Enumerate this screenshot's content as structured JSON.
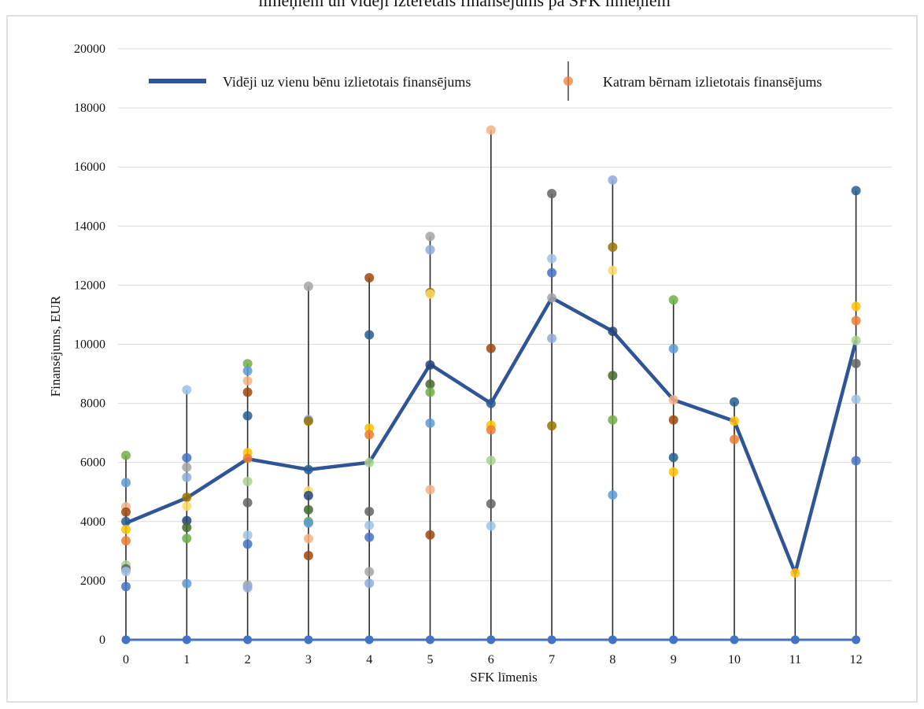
{
  "chart_data": {
    "type": "scatter",
    "title": "līmeņiem  un vidēji iztērētais finansējums pa SFK līmeņiem",
    "xlabel": "SFK līmenis",
    "ylabel": "Finansējums, EUR",
    "x": [
      0,
      1,
      2,
      3,
      4,
      5,
      6,
      7,
      8,
      9,
      10,
      11,
      12
    ],
    "ylim": [
      0,
      20000
    ],
    "yticks": [
      0,
      2000,
      4000,
      6000,
      8000,
      10000,
      12000,
      14000,
      16000,
      18000,
      20000
    ],
    "grid": "horizontal",
    "legend_position": "top",
    "series": [
      {
        "name": "Vidēji uz vienu bēnu izlietotais finansējums",
        "type": "line",
        "color": "#2f5597",
        "values": [
          3950,
          4800,
          6120,
          5760,
          6000,
          9320,
          8000,
          11570,
          10440,
          8120,
          7400,
          2260,
          10130
        ]
      },
      {
        "name": "Katram bērnam izlietotais finansējums",
        "type": "scatter-with-range",
        "color": "#ed7d31",
        "points": [
          [
            0,
            [
              6240,
              5320,
              4500,
              4320,
              4000,
              3730,
              3350,
              2530,
              2400,
              2310,
              1800
            ]
          ],
          [
            1,
            [
              8460,
              6160,
              5840,
              5500,
              4820,
              4520,
              4030,
              3800,
              3430,
              1900
            ]
          ],
          [
            2,
            [
              9340,
              9100,
              8760,
              8380,
              7580,
              6330,
              6140,
              5360,
              4640,
              3540,
              3240,
              1850,
              1760
            ]
          ],
          [
            3,
            [
              11960,
              7450,
              7400,
              5040,
              4880,
              4400,
              4000,
              3950,
              3420,
              2850,
              5760
            ]
          ],
          [
            4,
            [
              12250,
              10320,
              7160,
              6940,
              6000,
              4340,
              3870,
              3470,
              2300,
              1910
            ]
          ],
          [
            5,
            [
              13650,
              13200,
              11750,
              11700,
              9300,
              8650,
              8380,
              7330,
              5080,
              3550
            ]
          ],
          [
            6,
            [
              17250,
              9860,
              8000,
              7260,
              7100,
              6070,
              4600,
              3850
            ]
          ],
          [
            7,
            [
              15100,
              12900,
              12420,
              11570,
              10200,
              7240
            ]
          ],
          [
            8,
            [
              15560,
              13290,
              12500,
              10440,
              8940,
              7440,
              4900
            ]
          ],
          [
            9,
            [
              11500,
              9850,
              8120,
              7440,
              6170,
              5680
            ]
          ],
          [
            10,
            [
              8050,
              7400,
              6780
            ]
          ],
          [
            11,
            [
              2260
            ]
          ],
          [
            12,
            [
              15200,
              11280,
              10800,
              10130,
              9350,
              8140,
              6060
            ]
          ]
        ],
        "zero_line_color": "#4472c4"
      }
    ]
  }
}
